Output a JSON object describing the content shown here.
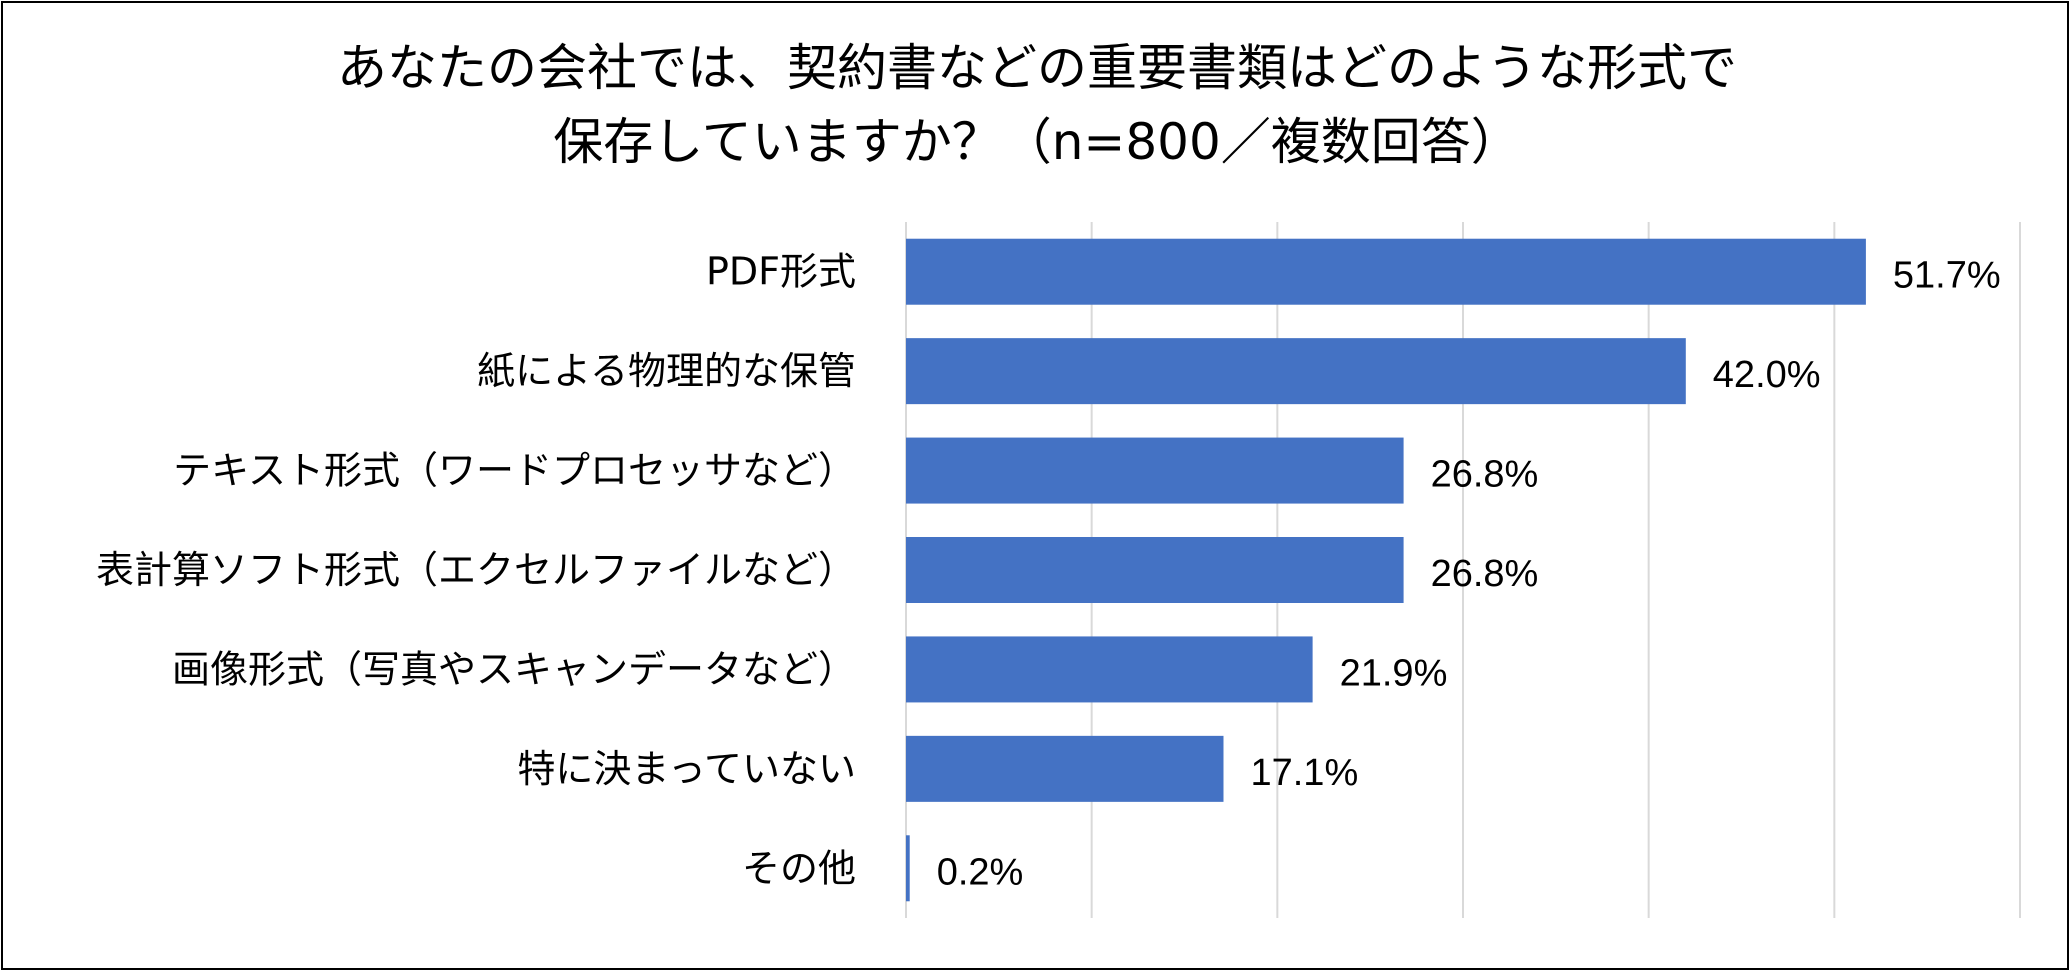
{
  "chart_data": {
    "type": "bar",
    "orientation": "horizontal",
    "title_lines": [
      "あなたの会社では、契約書などの重要書類はどのような形式で",
      "保存していますか？（n=800／複数回答）"
    ],
    "categories": [
      "PDF形式",
      "紙による物理的な保管",
      "テキスト形式（ワードプロセッサなど）",
      "表計算ソフト形式（エクセルファイルなど）",
      "画像形式（写真やスキャンデータなど）",
      "特に決まっていない",
      "その他"
    ],
    "values": [
      51.7,
      42.0,
      26.8,
      26.8,
      21.9,
      17.1,
      0.2
    ],
    "value_labels": [
      "51.7%",
      "42.0%",
      "26.8%",
      "26.8%",
      "21.9%",
      "17.1%",
      "0.2%"
    ],
    "xlim": [
      0,
      60
    ],
    "x_gridlines": true,
    "bar_color": "#4472C4",
    "grid_color": "#D9D9D9",
    "legend": "none"
  }
}
